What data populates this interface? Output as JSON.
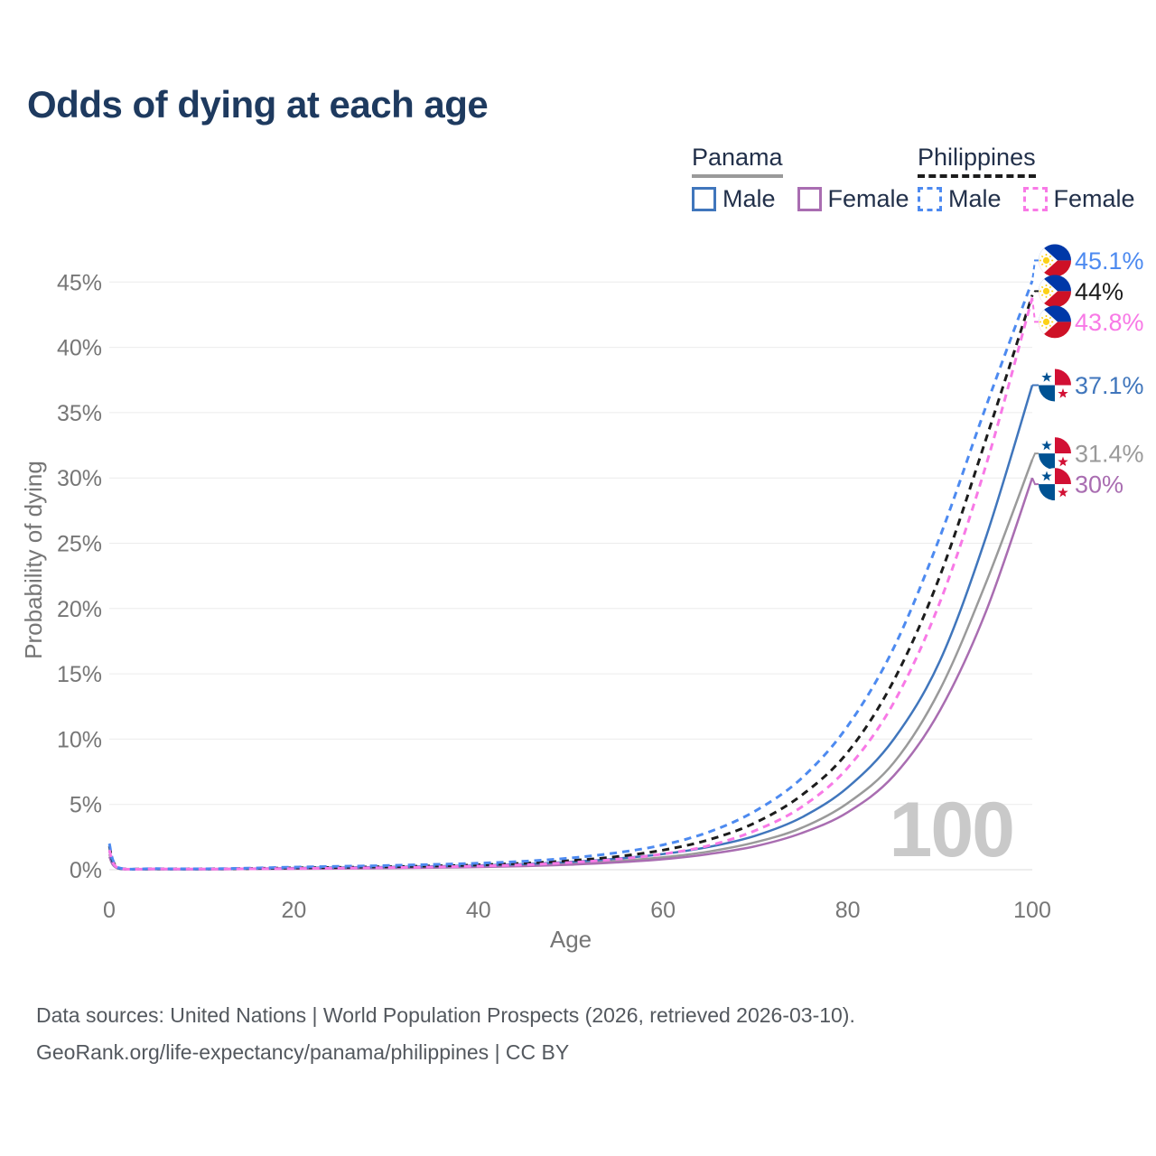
{
  "title": "Odds of dying at each age",
  "watermark": "100",
  "legend": {
    "groups": [
      {
        "name": "Panama",
        "line_style": "solid",
        "line_color": "#9a9a9a",
        "items": [
          {
            "label": "Male",
            "swatch_color": "#4076bc",
            "dashed": false
          },
          {
            "label": "Female",
            "swatch_color": "#a96db1",
            "dashed": false
          }
        ]
      },
      {
        "name": "Philippines",
        "line_style": "dashed",
        "line_color": "#1c1c1c",
        "items": [
          {
            "label": "Male",
            "swatch_color": "#4d8af0",
            "dashed": true
          },
          {
            "label": "Female",
            "swatch_color": "#f879e6",
            "dashed": true
          }
        ]
      }
    ]
  },
  "footer": {
    "line1": "Data sources: United Nations | World Population Prospects (2026, retrieved 2026-03-10).",
    "line2": "GeoRank.org/life-expectancy/panama/philippines | CC BY"
  },
  "chart_data": {
    "type": "line",
    "title": "Odds of dying at each age",
    "xlabel": "Age",
    "ylabel": "Probability of dying",
    "xlim": [
      0,
      100
    ],
    "ylim": [
      0,
      46.5
    ],
    "x_ticks": [
      0,
      20,
      40,
      60,
      80,
      100
    ],
    "y_ticks": [
      0,
      5,
      10,
      15,
      20,
      25,
      30,
      35,
      40,
      45
    ],
    "y_tick_suffix": "%",
    "grid": "horizontal",
    "legend_position": "top-right",
    "ages": [
      0,
      1,
      5,
      10,
      15,
      20,
      25,
      30,
      35,
      40,
      45,
      50,
      55,
      60,
      65,
      70,
      75,
      80,
      85,
      90,
      95,
      100
    ],
    "series": [
      {
        "name": "Philippines Male",
        "country": "Philippines",
        "sex": "Male",
        "color": "#4d8af0",
        "dashed": true,
        "flag": "ph",
        "end_label": "45.1%",
        "end_value": 45.1,
        "values": [
          2.0,
          0.15,
          0.08,
          0.07,
          0.12,
          0.2,
          0.26,
          0.32,
          0.4,
          0.5,
          0.65,
          0.9,
          1.3,
          1.9,
          2.9,
          4.5,
          7.0,
          11.0,
          17.0,
          25.5,
          35.5,
          45.1
        ]
      },
      {
        "name": "Philippines Total",
        "country": "Philippines",
        "sex": "Both",
        "color": "#1c1c1c",
        "dashed": true,
        "flag": "ph",
        "end_label": "44%",
        "end_value": 44,
        "values": [
          1.8,
          0.13,
          0.07,
          0.06,
          0.09,
          0.14,
          0.18,
          0.23,
          0.29,
          0.37,
          0.5,
          0.7,
          1.0,
          1.5,
          2.3,
          3.6,
          5.7,
          9.0,
          14.5,
          22.5,
          33.0,
          44.0
        ]
      },
      {
        "name": "Philippines Female",
        "country": "Philippines",
        "sex": "Female",
        "color": "#f879e6",
        "dashed": true,
        "flag": "ph",
        "end_label": "43.8%",
        "end_value": 43.8,
        "values": [
          1.5,
          0.11,
          0.06,
          0.05,
          0.07,
          0.09,
          0.12,
          0.16,
          0.21,
          0.28,
          0.38,
          0.55,
          0.8,
          1.2,
          1.85,
          3.0,
          4.8,
          7.8,
          12.8,
          20.5,
          31.0,
          43.8
        ]
      },
      {
        "name": "Panama Male",
        "country": "Panama",
        "sex": "Male",
        "color": "#4076bc",
        "dashed": false,
        "flag": "pa",
        "end_label": "37.1%",
        "end_value": 37.1,
        "values": [
          1.4,
          0.1,
          0.05,
          0.04,
          0.08,
          0.13,
          0.17,
          0.21,
          0.26,
          0.33,
          0.43,
          0.6,
          0.85,
          1.2,
          1.75,
          2.6,
          4.0,
          6.3,
          10.0,
          16.0,
          25.5,
          37.1
        ]
      },
      {
        "name": "Panama Total",
        "country": "Panama",
        "sex": "Both",
        "color": "#9a9a9a",
        "dashed": false,
        "flag": "pa",
        "end_label": "31.4%",
        "end_value": 31.4,
        "values": [
          1.2,
          0.09,
          0.04,
          0.035,
          0.06,
          0.1,
          0.13,
          0.16,
          0.2,
          0.26,
          0.34,
          0.47,
          0.67,
          0.95,
          1.4,
          2.1,
          3.2,
          5.1,
          8.2,
          13.8,
          22.0,
          31.4
        ]
      },
      {
        "name": "Panama Female",
        "country": "Panama",
        "sex": "Female",
        "color": "#a96db1",
        "dashed": false,
        "flag": "pa",
        "end_label": "30%",
        "end_value": 30,
        "values": [
          1.0,
          0.08,
          0.035,
          0.03,
          0.045,
          0.07,
          0.09,
          0.12,
          0.16,
          0.21,
          0.28,
          0.39,
          0.56,
          0.8,
          1.2,
          1.8,
          2.8,
          4.4,
          7.2,
          12.2,
          19.8,
          30.0
        ]
      }
    ]
  }
}
